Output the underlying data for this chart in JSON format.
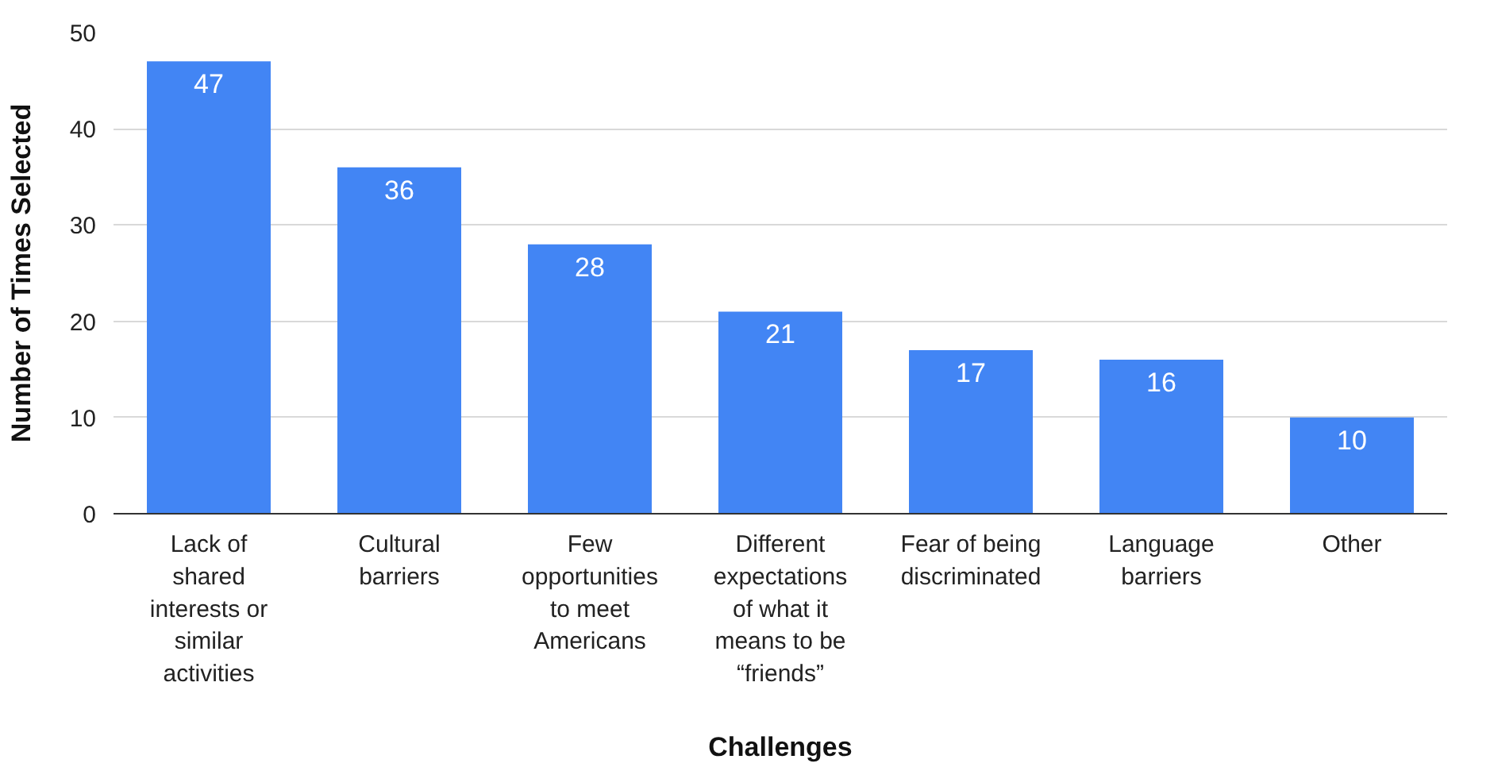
{
  "chart_data": {
    "type": "bar",
    "xlabel": "Challenges",
    "ylabel": "Number of Times Selected",
    "categories": [
      "Lack of shared interests or similar activities",
      "Cultural barriers",
      "Few opportunities to meet Americans",
      "Different expectations of what it means to be “friends”",
      "Fear of being discriminated",
      "Language barriers",
      "Other"
    ],
    "values": [
      47,
      36,
      28,
      21,
      17,
      16,
      10
    ],
    "color": "#4285f4",
    "ylim": [
      0,
      50
    ],
    "yticks": [
      0,
      10,
      20,
      30,
      40,
      50
    ],
    "grid": "y",
    "data_labels": true
  }
}
